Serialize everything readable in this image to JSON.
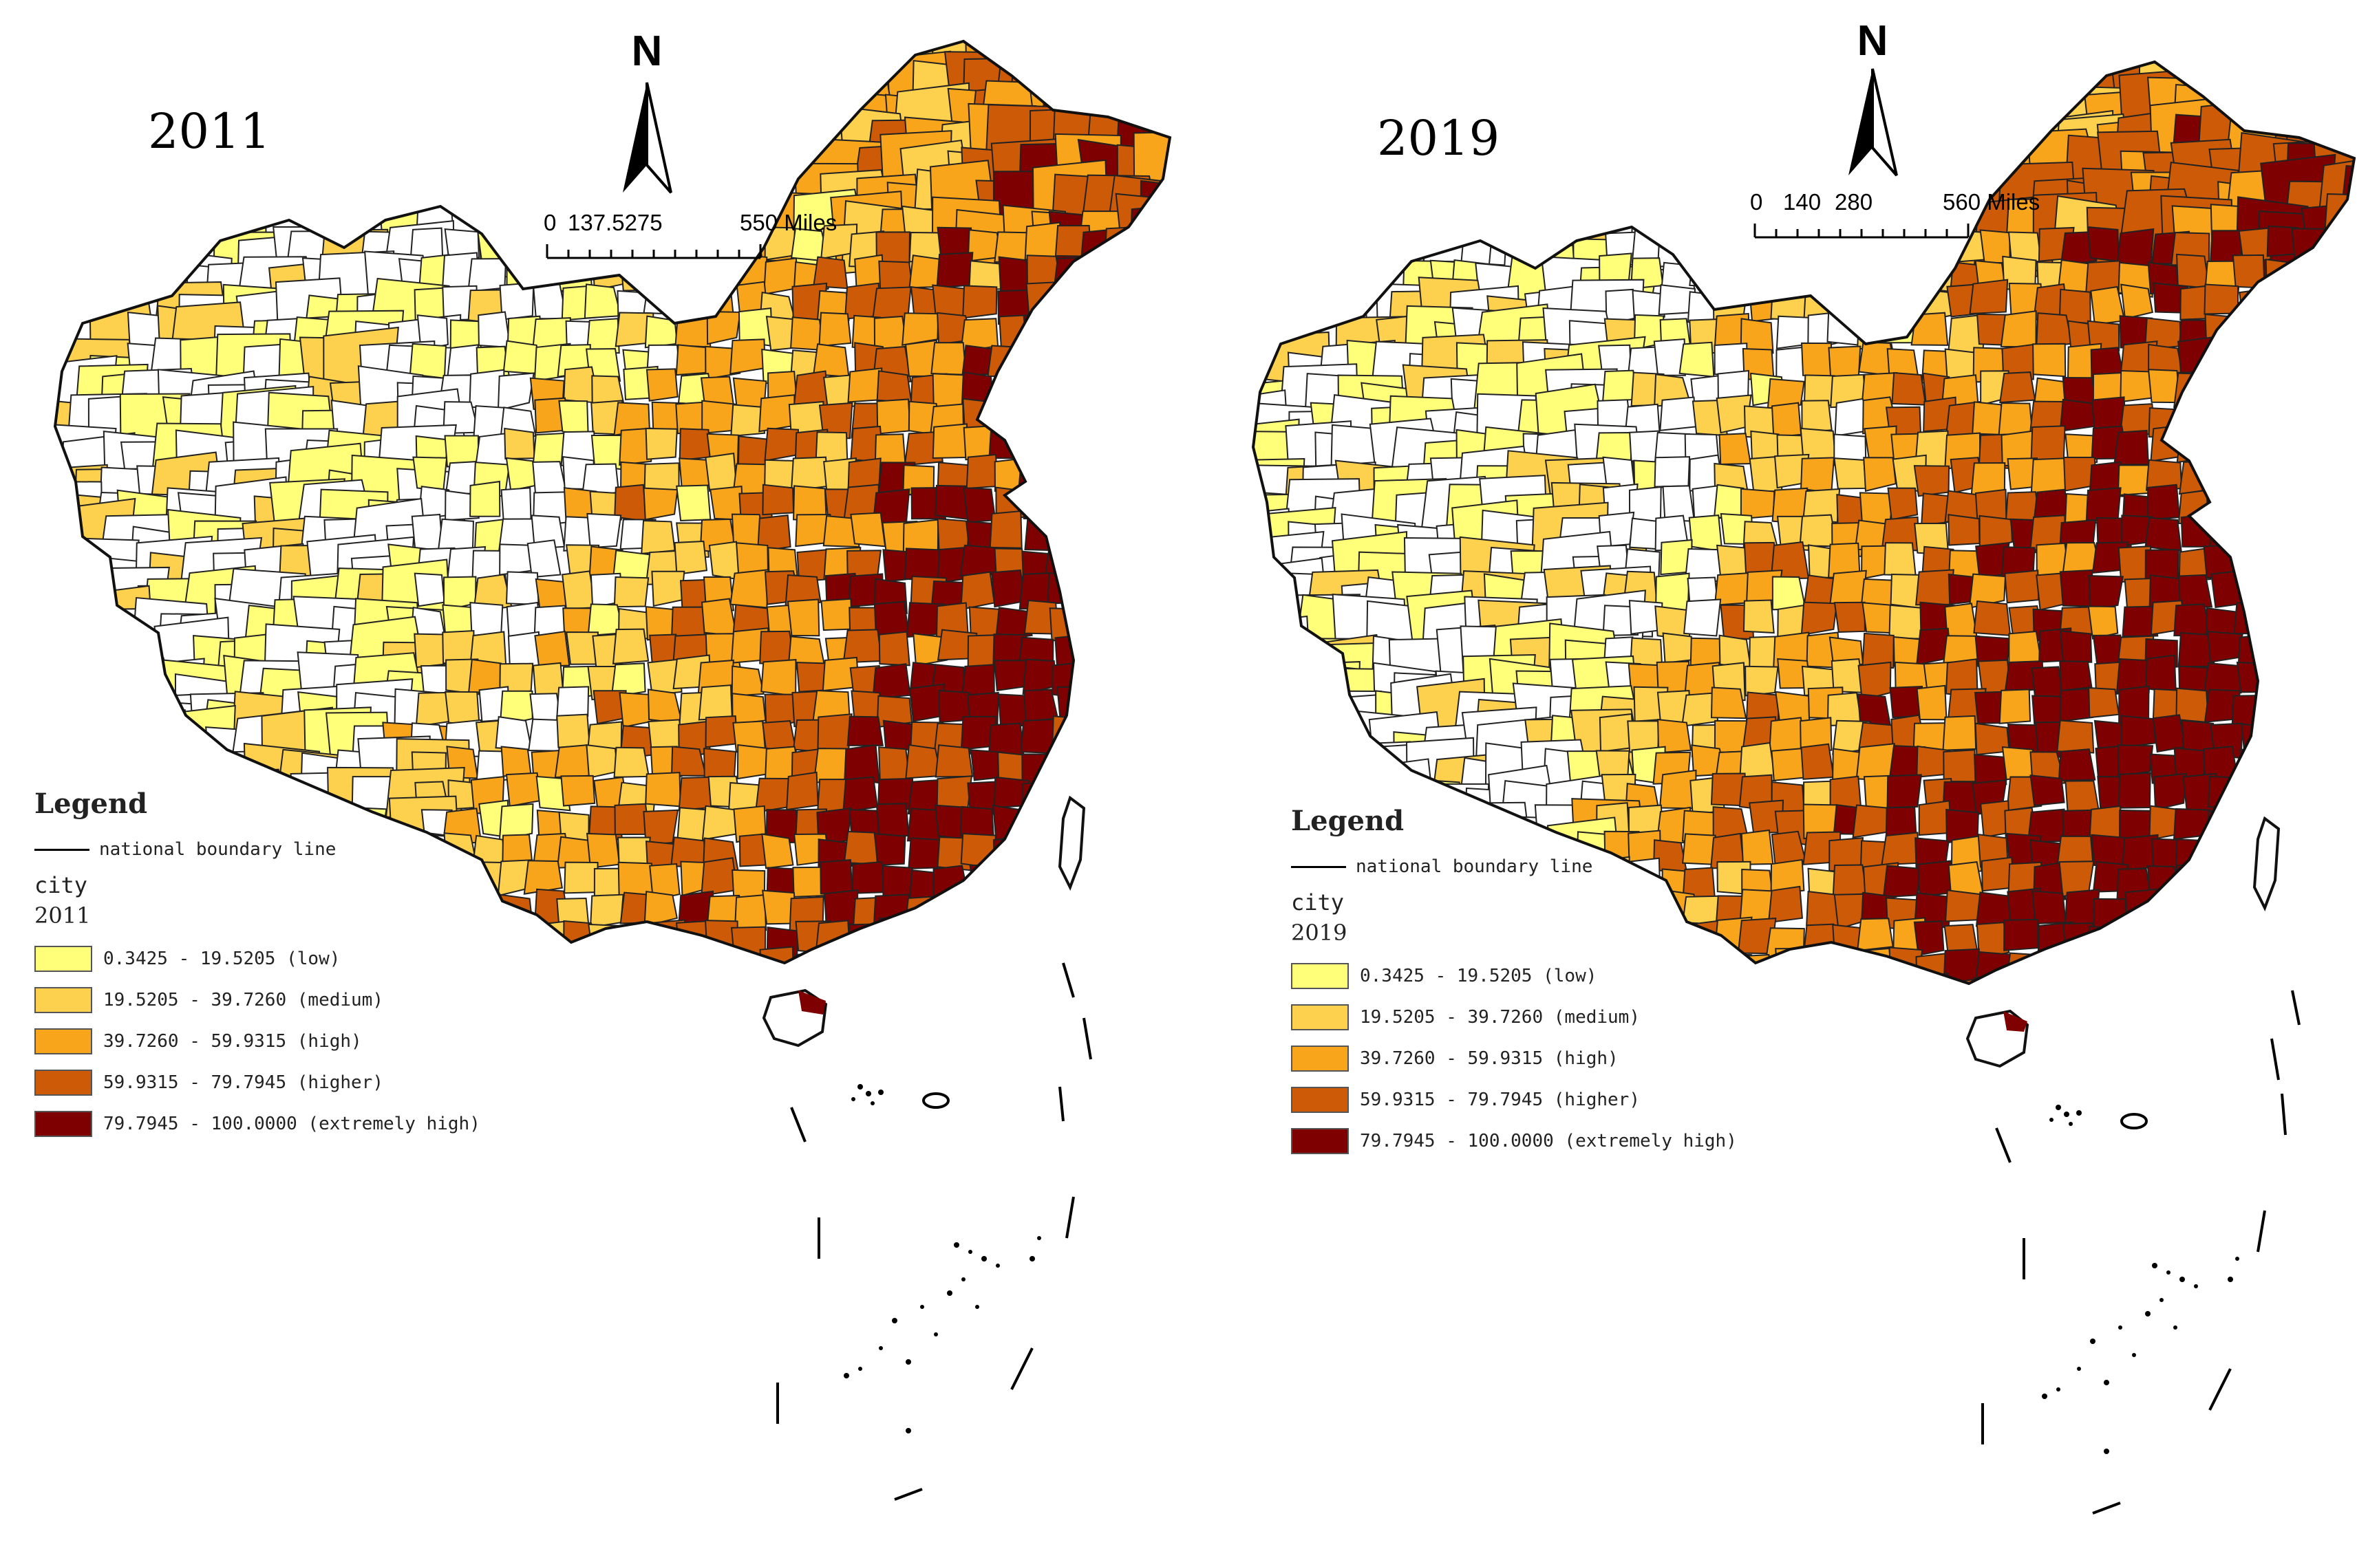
{
  "colors": {
    "c1": "#ffff7a",
    "c2": "#fdd04e",
    "c3": "#f9a51c",
    "c4": "#cc5a07",
    "c5": "#7f0000",
    "nodata": "#ffffff",
    "outline": "#222222"
  },
  "maps": [
    {
      "year_title": "2011",
      "north_label": "N",
      "scale": {
        "labels": [
          "0",
          "137.5275",
          "550 Miles"
        ]
      },
      "legend": {
        "title": "Legend",
        "boundary_label": "national boundary line",
        "layer_name": "city",
        "field_name": "2011",
        "classes": [
          {
            "label": "0.3425 - 19.5205 (low)",
            "color": "#ffff7a"
          },
          {
            "label": "19.5205 - 39.7260 (medium)",
            "color": "#fdd04e"
          },
          {
            "label": "39.7260 - 59.9315 (high)",
            "color": "#f9a51c"
          },
          {
            "label": "59.9315 - 79.7945 (higher)",
            "color": "#cc5a07"
          },
          {
            "label": "79.7945 - 100.0000 (extremely high)",
            "color": "#7f0000"
          }
        ]
      }
    },
    {
      "year_title": "2019",
      "north_label": "N",
      "scale": {
        "labels": [
          "0",
          "140",
          "280",
          "560 Miles"
        ]
      },
      "legend": {
        "title": "Legend",
        "boundary_label": "national boundary line",
        "layer_name": "city",
        "field_name": "2019",
        "classes": [
          {
            "label": "0.3425 - 19.5205 (low)",
            "color": "#ffff7a"
          },
          {
            "label": "19.5205 - 39.7260 (medium)",
            "color": "#fdd04e"
          },
          {
            "label": "39.7260 - 59.9315 (high)",
            "color": "#f9a51c"
          },
          {
            "label": "59.9315 - 79.7945 (higher)",
            "color": "#cc5a07"
          },
          {
            "label": "79.7945 - 100.0000 (extremely high)",
            "color": "#7f0000"
          }
        ]
      }
    }
  ]
}
